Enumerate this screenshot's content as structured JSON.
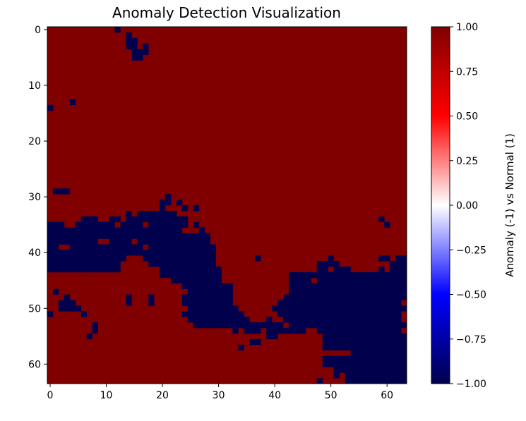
{
  "chart_data": {
    "type": "heatmap",
    "title": "Anomaly Detection Visualization",
    "xlabel": "",
    "ylabel": "",
    "grid_size": [
      64,
      64
    ],
    "x_ticks": [
      0,
      10,
      20,
      30,
      40,
      50,
      60
    ],
    "y_ticks": [
      0,
      10,
      20,
      30,
      40,
      50,
      60
    ],
    "xlim": [
      -0.5,
      63.5
    ],
    "ylim": [
      63.5,
      -0.5
    ],
    "grid": false,
    "colormap": "seismic",
    "colormap_stops": [
      "#00004d",
      "#0000ff",
      "#ffffff",
      "#ff0000",
      "#800000"
    ],
    "normal_color": "#800000",
    "anomaly_color": "#00004d",
    "values_note": "Cells are 1 (normal) except the listed anomaly cells, which are -1.",
    "anomaly_cells_by_row": [
      [
        12
      ],
      [
        14
      ],
      [
        14,
        15
      ],
      [
        14,
        15,
        17
      ],
      [
        15,
        16,
        17
      ],
      [
        15,
        16
      ],
      [],
      [],
      [],
      [],
      [],
      [],
      [],
      [
        4
      ],
      [
        0
      ],
      [],
      [],
      [],
      [],
      [],
      [],
      [],
      [],
      [],
      [],
      [],
      [],
      [],
      [],
      [
        1,
        2,
        3
      ],
      [
        21
      ],
      [
        20,
        21,
        23
      ],
      [
        20,
        24,
        26
      ],
      [
        14,
        16,
        17,
        18,
        19,
        20,
        21,
        22
      ],
      [
        6,
        7,
        8,
        11,
        12,
        14,
        15,
        16,
        17,
        18,
        19,
        20,
        21,
        22,
        23,
        24,
        59
      ],
      [
        0,
        1,
        2,
        5,
        6,
        7,
        8,
        9,
        10,
        11,
        13,
        14,
        15,
        16,
        18,
        19,
        20,
        21,
        22,
        23,
        24,
        26,
        60
      ],
      [
        0,
        1,
        2,
        3,
        4,
        5,
        6,
        7,
        8,
        9,
        10,
        11,
        12,
        13,
        14,
        15,
        16,
        17,
        18,
        19,
        20,
        21,
        22,
        23,
        27
      ],
      [
        0,
        1,
        2,
        3,
        4,
        5,
        6,
        7,
        8,
        9,
        10,
        11,
        12,
        13,
        14,
        15,
        16,
        17,
        18,
        19,
        20,
        21,
        22,
        23,
        24,
        25,
        26,
        27,
        28
      ],
      [
        0,
        1,
        2,
        3,
        4,
        5,
        6,
        7,
        8,
        11,
        12,
        13,
        14,
        16,
        17,
        18,
        19,
        20,
        21,
        22,
        23,
        24,
        25,
        26,
        27,
        28
      ],
      [
        0,
        1,
        4,
        5,
        6,
        7,
        8,
        9,
        10,
        11,
        12,
        13,
        14,
        15,
        16,
        18,
        19,
        20,
        21,
        22,
        23,
        24,
        25,
        26,
        27,
        28,
        29
      ],
      [
        0,
        1,
        2,
        3,
        4,
        5,
        6,
        7,
        8,
        9,
        10,
        11,
        12,
        13,
        14,
        15,
        16,
        17,
        18,
        19,
        20,
        21,
        22,
        23,
        24,
        25,
        26,
        27,
        28,
        29
      ],
      [
        0,
        1,
        2,
        3,
        4,
        5,
        6,
        7,
        8,
        9,
        10,
        11,
        12,
        13,
        17,
        18,
        19,
        20,
        21,
        22,
        23,
        24,
        25,
        26,
        27,
        28,
        29,
        37,
        50,
        59,
        60,
        62,
        63
      ],
      [
        0,
        1,
        2,
        3,
        4,
        5,
        6,
        7,
        8,
        9,
        10,
        11,
        12,
        18,
        19,
        20,
        21,
        22,
        23,
        24,
        25,
        26,
        27,
        28,
        29,
        48,
        49,
        50,
        51,
        61,
        62,
        63
      ],
      [
        0,
        1,
        2,
        3,
        4,
        5,
        6,
        7,
        8,
        9,
        10,
        11,
        12,
        20,
        21,
        22,
        23,
        24,
        25,
        26,
        27,
        28,
        29,
        30,
        48,
        49,
        51,
        52,
        53,
        59,
        61,
        62,
        63
      ],
      [
        20,
        21,
        22,
        23,
        24,
        25,
        26,
        27,
        28,
        29,
        30,
        43,
        44,
        45,
        46,
        47,
        48,
        49,
        50,
        51,
        52,
        53,
        54,
        55,
        56,
        57,
        58,
        59,
        60,
        61,
        62,
        63
      ],
      [
        22,
        23,
        24,
        25,
        26,
        27,
        28,
        29,
        30,
        43,
        44,
        45,
        46,
        48,
        49,
        50,
        51,
        52,
        53,
        54,
        55,
        56,
        57,
        58,
        59,
        60,
        61,
        62,
        63
      ],
      [
        24,
        25,
        26,
        27,
        28,
        29,
        30,
        31,
        32,
        43,
        44,
        45,
        46,
        47,
        48,
        49,
        50,
        51,
        52,
        53,
        54,
        55,
        56,
        57,
        58,
        59,
        60,
        61,
        62,
        63
      ],
      [
        1,
        25,
        26,
        27,
        28,
        29,
        30,
        31,
        32,
        43,
        44,
        45,
        46,
        47,
        48,
        49,
        50,
        51,
        52,
        53,
        54,
        55,
        56,
        57,
        58,
        59,
        60,
        61,
        62,
        63
      ],
      [
        3,
        14,
        18,
        24,
        25,
        26,
        27,
        28,
        29,
        30,
        31,
        32,
        42,
        43,
        44,
        45,
        46,
        47,
        48,
        49,
        50,
        51,
        52,
        53,
        54,
        55,
        56,
        57,
        58,
        59,
        60,
        61,
        62,
        63
      ],
      [
        2,
        3,
        4,
        14,
        18,
        24,
        25,
        26,
        27,
        28,
        29,
        30,
        31,
        32,
        41,
        42,
        43,
        44,
        45,
        46,
        47,
        48,
        49,
        50,
        51,
        52,
        53,
        54,
        55,
        56,
        57,
        58,
        59,
        60,
        61,
        62
      ],
      [
        2,
        3,
        4,
        5,
        25,
        26,
        27,
        28,
        29,
        30,
        31,
        32,
        33,
        40,
        41,
        42,
        43,
        44,
        45,
        46,
        47,
        48,
        49,
        50,
        51,
        52,
        53,
        54,
        55,
        56,
        57,
        58,
        59,
        60,
        61,
        62,
        63
      ],
      [
        0,
        6,
        24,
        25,
        26,
        27,
        28,
        29,
        30,
        31,
        32,
        33,
        34,
        41,
        42,
        43,
        44,
        45,
        46,
        47,
        48,
        49,
        50,
        51,
        52,
        53,
        54,
        55,
        56,
        57,
        58,
        59,
        60,
        61,
        62
      ],
      [
        25,
        26,
        27,
        28,
        29,
        30,
        31,
        32,
        33,
        34,
        35,
        39,
        42,
        43,
        44,
        45,
        46,
        47,
        48,
        49,
        50,
        51,
        52,
        53,
        54,
        55,
        56,
        57,
        58,
        59,
        60,
        61,
        62
      ],
      [
        8,
        26,
        27,
        28,
        29,
        30,
        31,
        32,
        33,
        34,
        35,
        36,
        37,
        38,
        39,
        40,
        41,
        43,
        44,
        45,
        46,
        47,
        48,
        49,
        50,
        51,
        52,
        53,
        54,
        55,
        56,
        57,
        58,
        59,
        60,
        61,
        62,
        63
      ],
      [
        8,
        33,
        35,
        36,
        37,
        39,
        40,
        41,
        42,
        43,
        44,
        45,
        48,
        49,
        50,
        51,
        52,
        53,
        54,
        55,
        56,
        57,
        58,
        59,
        60,
        61,
        62
      ],
      [
        7,
        39,
        40,
        49,
        50,
        51,
        52,
        53,
        54,
        55,
        56,
        57,
        58,
        59,
        60,
        61,
        62,
        63
      ],
      [
        36,
        37,
        49,
        50,
        51,
        52,
        53,
        54,
        55,
        56,
        57,
        58,
        59,
        60,
        61,
        62,
        63
      ],
      [
        34,
        49,
        50,
        51,
        52,
        53,
        54,
        55,
        56,
        57,
        58,
        59,
        60,
        61,
        62,
        63
      ],
      [
        54,
        55,
        56,
        57,
        58,
        59,
        60,
        61,
        62,
        63
      ],
      [
        49,
        50,
        51,
        52,
        53,
        54,
        55,
        56,
        57,
        58,
        59,
        60,
        61,
        62,
        63
      ],
      [
        49,
        50,
        51,
        52,
        53,
        54,
        55,
        56,
        57,
        58,
        59,
        60,
        61,
        62,
        63
      ],
      [
        51,
        52,
        53,
        54,
        55,
        56,
        57,
        58,
        59,
        60,
        61,
        62,
        63
      ],
      [
        51,
        53,
        54,
        55,
        56,
        57,
        58,
        59,
        60,
        61,
        62,
        63
      ],
      [
        48,
        53,
        54,
        55,
        56,
        57,
        58,
        59,
        60,
        61,
        62,
        63
      ]
    ],
    "colorbar": {
      "label": "Anomaly (-1) vs Normal (1)",
      "range": [
        -1.0,
        1.0
      ],
      "ticks": [
        1.0,
        0.75,
        0.5,
        0.25,
        0.0,
        -0.25,
        -0.5,
        -0.75,
        -1.0
      ],
      "tick_labels": [
        "1.00",
        "0.75",
        "0.50",
        "0.25",
        "0.00",
        "−0.25",
        "−0.50",
        "−0.75",
        "−1.00"
      ]
    }
  }
}
